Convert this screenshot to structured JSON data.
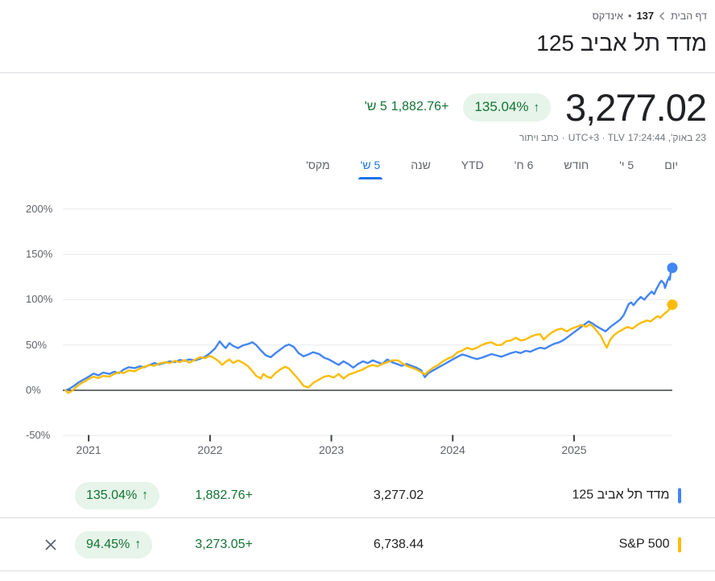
{
  "breadcrumb": {
    "home": "דף הבית",
    "symbol": "137",
    "separator": "•",
    "type": "אינדקס"
  },
  "header": {
    "title": "מדד תל אביב 125"
  },
  "quote": {
    "price": "3,277.02",
    "change_percent": "135.04%",
    "arrow": "↑",
    "change_abs": "+1,882.76",
    "change_period": "5 ש'",
    "meta_datetime": "23 באוק', 17:24:44",
    "meta_timezone_exchange": "UTC+3 · TLV",
    "meta_dot": "·",
    "disclaimer": "כתב ויתור"
  },
  "tabs": {
    "items": [
      "יום",
      "5 י'",
      "חודש",
      "6 ח'",
      "YTD",
      "שנה",
      "5 ש'",
      "מקס'"
    ],
    "selected_index": 6
  },
  "colors": {
    "blue": "#4285F4",
    "yellow": "#FBBC04",
    "green_text": "#137333",
    "green_bg": "#E6F4EA",
    "accent_blue": "#1A73E8",
    "text_dark": "#202124",
    "text_gray": "#5F6368",
    "grid": "#E8EAED",
    "zero_line": "#3C4043",
    "divider": "#DADCE0"
  },
  "chart_data": {
    "type": "line",
    "unit": "percent change over 5 years",
    "x_range": [
      2020.81,
      2025.81
    ],
    "y_range": [
      -50,
      200
    ],
    "grid": true,
    "yticks": [
      {
        "value": 200,
        "label": "200%"
      },
      {
        "value": 150,
        "label": "150%"
      },
      {
        "value": 100,
        "label": "100%"
      },
      {
        "value": 50,
        "label": "50%"
      },
      {
        "value": 0,
        "label": "0%"
      },
      {
        "value": -50,
        "label": "-50%"
      }
    ],
    "xticks": [
      {
        "value": 2021,
        "label": "2021"
      },
      {
        "value": 2022,
        "label": "2022"
      },
      {
        "value": 2023,
        "label": "2023"
      },
      {
        "value": 2024,
        "label": "2024"
      },
      {
        "value": 2025,
        "label": "2025"
      }
    ],
    "series": [
      {
        "name": "מדד תל אביב 125",
        "color": "#4285F4",
        "end_value": 135.04,
        "points": [
          [
            2020.81,
            0
          ],
          [
            2020.84,
            1.5
          ],
          [
            2020.88,
            5
          ],
          [
            2020.92,
            9
          ],
          [
            2020.96,
            12
          ],
          [
            2021.0,
            15
          ],
          [
            2021.04,
            18.5
          ],
          [
            2021.08,
            16.5
          ],
          [
            2021.12,
            19.5
          ],
          [
            2021.17,
            18
          ],
          [
            2021.21,
            20.5
          ],
          [
            2021.25,
            19
          ],
          [
            2021.29,
            23
          ],
          [
            2021.33,
            25.5
          ],
          [
            2021.38,
            24.5
          ],
          [
            2021.42,
            26.5
          ],
          [
            2021.46,
            25.5
          ],
          [
            2021.5,
            28
          ],
          [
            2021.54,
            30
          ],
          [
            2021.58,
            28.5
          ],
          [
            2021.63,
            30.5
          ],
          [
            2021.67,
            32
          ],
          [
            2021.71,
            31
          ],
          [
            2021.75,
            33.5
          ],
          [
            2021.79,
            32.5
          ],
          [
            2021.83,
            34
          ],
          [
            2021.88,
            33
          ],
          [
            2021.92,
            35
          ],
          [
            2021.96,
            37
          ],
          [
            2022.0,
            41
          ],
          [
            2022.04,
            46
          ],
          [
            2022.08,
            54
          ],
          [
            2022.11,
            49
          ],
          [
            2022.13,
            46.5
          ],
          [
            2022.16,
            52
          ],
          [
            2022.19,
            49
          ],
          [
            2022.23,
            46.5
          ],
          [
            2022.27,
            49.5
          ],
          [
            2022.31,
            51
          ],
          [
            2022.35,
            53
          ],
          [
            2022.38,
            50
          ],
          [
            2022.42,
            44
          ],
          [
            2022.46,
            38.5
          ],
          [
            2022.5,
            36.5
          ],
          [
            2022.54,
            41
          ],
          [
            2022.58,
            45
          ],
          [
            2022.62,
            49
          ],
          [
            2022.65,
            50.5
          ],
          [
            2022.69,
            48
          ],
          [
            2022.73,
            41
          ],
          [
            2022.77,
            37.5
          ],
          [
            2022.81,
            39.5
          ],
          [
            2022.85,
            42
          ],
          [
            2022.9,
            40
          ],
          [
            2022.94,
            36
          ],
          [
            2022.98,
            34
          ],
          [
            2023.02,
            31
          ],
          [
            2023.06,
            28
          ],
          [
            2023.1,
            32
          ],
          [
            2023.14,
            29
          ],
          [
            2023.18,
            25
          ],
          [
            2023.22,
            29
          ],
          [
            2023.26,
            32
          ],
          [
            2023.3,
            30
          ],
          [
            2023.34,
            33
          ],
          [
            2023.38,
            31
          ],
          [
            2023.42,
            29
          ],
          [
            2023.46,
            34
          ],
          [
            2023.5,
            31
          ],
          [
            2023.54,
            29
          ],
          [
            2023.58,
            27
          ],
          [
            2023.62,
            29
          ],
          [
            2023.66,
            27
          ],
          [
            2023.7,
            25
          ],
          [
            2023.74,
            22
          ],
          [
            2023.77,
            14.5
          ],
          [
            2023.8,
            19
          ],
          [
            2023.84,
            22
          ],
          [
            2023.88,
            25
          ],
          [
            2023.92,
            28
          ],
          [
            2023.96,
            31
          ],
          [
            2024.0,
            34
          ],
          [
            2024.04,
            37
          ],
          [
            2024.08,
            39.5
          ],
          [
            2024.12,
            38
          ],
          [
            2024.16,
            36
          ],
          [
            2024.2,
            34.5
          ],
          [
            2024.24,
            36
          ],
          [
            2024.28,
            38
          ],
          [
            2024.32,
            40
          ],
          [
            2024.36,
            38.5
          ],
          [
            2024.4,
            37
          ],
          [
            2024.44,
            39
          ],
          [
            2024.48,
            41
          ],
          [
            2024.52,
            42.5
          ],
          [
            2024.56,
            41
          ],
          [
            2024.6,
            43.5
          ],
          [
            2024.64,
            42.5
          ],
          [
            2024.68,
            45
          ],
          [
            2024.72,
            47
          ],
          [
            2024.76,
            46
          ],
          [
            2024.8,
            49
          ],
          [
            2024.84,
            51.5
          ],
          [
            2024.88,
            53
          ],
          [
            2024.92,
            56
          ],
          [
            2024.96,
            60
          ],
          [
            2025.0,
            64
          ],
          [
            2025.04,
            68
          ],
          [
            2025.08,
            72
          ],
          [
            2025.12,
            76
          ],
          [
            2025.15,
            74
          ],
          [
            2025.18,
            71
          ],
          [
            2025.22,
            68
          ],
          [
            2025.26,
            65
          ],
          [
            2025.3,
            70
          ],
          [
            2025.34,
            74
          ],
          [
            2025.38,
            78
          ],
          [
            2025.41,
            83
          ],
          [
            2025.43,
            89
          ],
          [
            2025.45,
            95
          ],
          [
            2025.47,
            97
          ],
          [
            2025.49,
            94
          ],
          [
            2025.52,
            99
          ],
          [
            2025.55,
            103
          ],
          [
            2025.58,
            100
          ],
          [
            2025.61,
            105
          ],
          [
            2025.64,
            109
          ],
          [
            2025.66,
            106
          ],
          [
            2025.68,
            112
          ],
          [
            2025.7,
            117
          ],
          [
            2025.72,
            121
          ],
          [
            2025.74,
            118
          ],
          [
            2025.75,
            113
          ],
          [
            2025.77,
            121
          ],
          [
            2025.785,
            125
          ],
          [
            2025.79,
            122
          ],
          [
            2025.8,
            135
          ],
          [
            2025.81,
            135.04
          ]
        ]
      },
      {
        "name": "S&P 500",
        "color": "#FBBC04",
        "end_value": 94.45,
        "points": [
          [
            2020.81,
            0
          ],
          [
            2020.83,
            -3
          ],
          [
            2020.86,
            -1
          ],
          [
            2020.89,
            3
          ],
          [
            2020.93,
            7
          ],
          [
            2020.97,
            10
          ],
          [
            2021.0,
            12.5
          ],
          [
            2021.04,
            15
          ],
          [
            2021.08,
            13.5
          ],
          [
            2021.12,
            16
          ],
          [
            2021.17,
            15
          ],
          [
            2021.21,
            18
          ],
          [
            2021.25,
            20
          ],
          [
            2021.29,
            19
          ],
          [
            2021.33,
            22
          ],
          [
            2021.38,
            21
          ],
          [
            2021.42,
            24
          ],
          [
            2021.46,
            26
          ],
          [
            2021.5,
            28
          ],
          [
            2021.54,
            27
          ],
          [
            2021.58,
            29.5
          ],
          [
            2021.63,
            31
          ],
          [
            2021.67,
            30
          ],
          [
            2021.71,
            32.5
          ],
          [
            2021.75,
            31
          ],
          [
            2021.79,
            33.5
          ],
          [
            2021.83,
            30.5
          ],
          [
            2021.88,
            34
          ],
          [
            2021.92,
            36.5
          ],
          [
            2021.96,
            35.5
          ],
          [
            2022.0,
            38
          ],
          [
            2022.04,
            35
          ],
          [
            2022.08,
            31
          ],
          [
            2022.1,
            28
          ],
          [
            2022.13,
            31.5
          ],
          [
            2022.16,
            34
          ],
          [
            2022.19,
            30
          ],
          [
            2022.23,
            33
          ],
          [
            2022.27,
            30.5
          ],
          [
            2022.31,
            27
          ],
          [
            2022.35,
            21
          ],
          [
            2022.38,
            16
          ],
          [
            2022.42,
            13
          ],
          [
            2022.44,
            18
          ],
          [
            2022.47,
            15
          ],
          [
            2022.5,
            13.5
          ],
          [
            2022.54,
            19
          ],
          [
            2022.58,
            23
          ],
          [
            2022.62,
            26
          ],
          [
            2022.65,
            24
          ],
          [
            2022.69,
            18
          ],
          [
            2022.73,
            12
          ],
          [
            2022.77,
            5
          ],
          [
            2022.81,
            3
          ],
          [
            2022.85,
            8
          ],
          [
            2022.9,
            12
          ],
          [
            2022.94,
            15
          ],
          [
            2022.98,
            16
          ],
          [
            2023.02,
            14
          ],
          [
            2023.06,
            18
          ],
          [
            2023.1,
            13
          ],
          [
            2023.14,
            17
          ],
          [
            2023.18,
            19
          ],
          [
            2023.22,
            21
          ],
          [
            2023.26,
            23
          ],
          [
            2023.3,
            26
          ],
          [
            2023.34,
            28
          ],
          [
            2023.38,
            26.5
          ],
          [
            2023.42,
            29
          ],
          [
            2023.46,
            31
          ],
          [
            2023.5,
            33
          ],
          [
            2023.55,
            33
          ],
          [
            2023.58,
            30
          ],
          [
            2023.62,
            27
          ],
          [
            2023.66,
            25
          ],
          [
            2023.7,
            23
          ],
          [
            2023.74,
            20
          ],
          [
            2023.77,
            17.5
          ],
          [
            2023.8,
            21
          ],
          [
            2023.84,
            25
          ],
          [
            2023.88,
            28
          ],
          [
            2023.92,
            32
          ],
          [
            2023.96,
            35
          ],
          [
            2024.0,
            37
          ],
          [
            2024.04,
            42
          ],
          [
            2024.08,
            44
          ],
          [
            2024.12,
            47
          ],
          [
            2024.16,
            45
          ],
          [
            2024.2,
            47
          ],
          [
            2024.24,
            50
          ],
          [
            2024.28,
            52
          ],
          [
            2024.32,
            53
          ],
          [
            2024.36,
            50
          ],
          [
            2024.4,
            50
          ],
          [
            2024.44,
            54
          ],
          [
            2024.48,
            55
          ],
          [
            2024.52,
            58
          ],
          [
            2024.56,
            55
          ],
          [
            2024.6,
            56
          ],
          [
            2024.64,
            59
          ],
          [
            2024.68,
            61
          ],
          [
            2024.72,
            62
          ],
          [
            2024.75,
            56
          ],
          [
            2024.78,
            60
          ],
          [
            2024.82,
            64
          ],
          [
            2024.86,
            67
          ],
          [
            2024.9,
            68
          ],
          [
            2024.94,
            65
          ],
          [
            2024.98,
            68
          ],
          [
            2025.02,
            70
          ],
          [
            2025.06,
            72
          ],
          [
            2025.1,
            70
          ],
          [
            2025.13,
            73
          ],
          [
            2025.16,
            70
          ],
          [
            2025.19,
            65
          ],
          [
            2025.22,
            60
          ],
          [
            2025.25,
            52
          ],
          [
            2025.27,
            47
          ],
          [
            2025.3,
            56
          ],
          [
            2025.33,
            61
          ],
          [
            2025.36,
            64
          ],
          [
            2025.4,
            67
          ],
          [
            2025.44,
            70
          ],
          [
            2025.48,
            68
          ],
          [
            2025.52,
            72
          ],
          [
            2025.56,
            75
          ],
          [
            2025.6,
            77
          ],
          [
            2025.63,
            76
          ],
          [
            2025.66,
            79
          ],
          [
            2025.69,
            82
          ],
          [
            2025.71,
            80
          ],
          [
            2025.74,
            84
          ],
          [
            2025.77,
            87
          ],
          [
            2025.79,
            90
          ],
          [
            2025.8,
            92
          ],
          [
            2025.81,
            94.45
          ]
        ]
      }
    ]
  },
  "legend": {
    "rows": [
      {
        "name": "מדד תל אביב 125",
        "color": "#4285F4",
        "price": "3,277.02",
        "change": "+1,882.76",
        "change_percent": "135.04%",
        "arrow": "↑",
        "removable": false
      },
      {
        "name": "S&P 500",
        "color": "#FBBC04",
        "price": "6,738.44",
        "change": "+3,273.05",
        "change_percent": "94.45%",
        "arrow": "↑",
        "removable": true
      }
    ]
  }
}
